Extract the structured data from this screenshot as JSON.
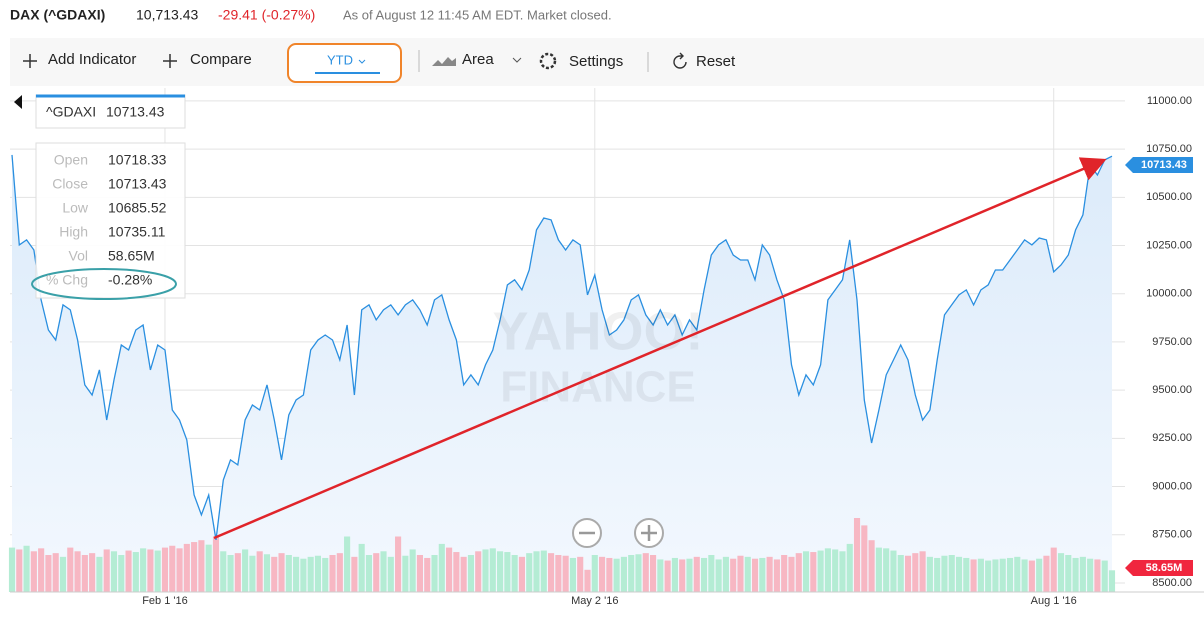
{
  "header": {
    "name": "DAX (^GDAXI)",
    "price": "10,713.43",
    "change": "-29.41 (-0.27%)",
    "status": "As of August 12 11:45 AM EDT. Market closed."
  },
  "toolbar": {
    "add_indicator": "Add Indicator",
    "compare": "Compare",
    "range": "YTD",
    "chart_type": "Area",
    "settings": "Settings",
    "reset": "Reset"
  },
  "tooltip": {
    "symbol": "^GDAXI",
    "rows": [
      {
        "label": "Open",
        "value": "10718.33"
      },
      {
        "label": "Close",
        "value": "10713.43"
      },
      {
        "label": "Low",
        "value": "10685.52"
      },
      {
        "label": "High",
        "value": "10735.11"
      },
      {
        "label": "Vol",
        "value": "58.65M"
      },
      {
        "label": "% Chg",
        "value": "-0.28%"
      }
    ]
  },
  "chart_data": {
    "type": "line",
    "watermark": [
      "YAHOO!",
      "FINANCE"
    ],
    "categories": [
      null,
      null,
      null,
      null,
      null,
      null,
      null,
      null,
      null,
      null,
      null,
      null,
      null,
      null,
      null,
      null,
      null,
      null,
      null,
      null,
      null,
      "Feb 1 '16",
      null,
      null,
      null,
      null,
      null,
      null,
      null,
      null,
      null,
      null,
      null,
      null,
      null,
      null,
      null,
      null,
      null,
      null,
      null,
      null,
      null,
      null,
      null,
      null,
      null,
      null,
      null,
      null,
      null,
      null,
      null,
      null,
      null,
      null,
      null,
      null,
      null,
      null,
      null,
      null,
      null,
      null,
      null,
      null,
      null,
      null,
      null,
      null,
      null,
      null,
      null,
      null,
      null,
      null,
      null,
      null,
      null,
      null,
      "May 2 '16",
      null,
      null,
      null,
      null,
      null,
      null,
      null,
      null,
      null,
      null,
      null,
      null,
      null,
      null,
      null,
      null,
      null,
      null,
      null,
      null,
      null,
      null,
      null,
      null,
      null,
      null,
      null,
      null,
      null,
      null,
      null,
      null,
      null,
      null,
      null,
      null,
      null,
      null,
      null,
      null,
      null,
      null,
      null,
      null,
      null,
      null,
      null,
      null,
      null,
      null,
      null,
      null,
      null,
      null,
      null,
      null,
      null,
      null,
      null,
      null,
      null,
      null,
      "Aug 1 '16",
      null,
      null,
      null,
      null,
      null,
      null,
      null,
      null
    ],
    "series": [
      {
        "name": "^GDAXI",
        "color": "#2a8fe0",
        "values": [
          10720,
          10253,
          10279,
          10227,
          9968,
          9812,
          9760,
          9942,
          9916,
          9760,
          9527,
          9475,
          9605,
          9345,
          9553,
          9734,
          9708,
          9812,
          9838,
          9605,
          9734,
          9708,
          9397,
          9345,
          9242,
          8956,
          8853,
          8956,
          8723,
          9034,
          9138,
          9112,
          9345,
          9423,
          9397,
          9527,
          9345,
          9138,
          9371,
          9449,
          9475,
          9708,
          9760,
          9786,
          9760,
          9657,
          9838,
          9475,
          9916,
          9942,
          9864,
          9916,
          9942,
          9890,
          9942,
          9968,
          9916,
          9838,
          9968,
          9994,
          9864,
          9760,
          9527,
          9579,
          9527,
          9631,
          9708,
          9864,
          10046,
          10072,
          10020,
          10123,
          10331,
          10393,
          10383,
          10279,
          10227,
          10279,
          10253,
          9994,
          10097,
          9916,
          9786,
          9812,
          9864,
          9968,
          9994,
          9890,
          9838,
          9916,
          9838,
          9890,
          9786,
          9864,
          9812,
          10020,
          10201,
          10253,
          10279,
          10201,
          10175,
          10175,
          10072,
          10253,
          10201,
          10072,
          9968,
          9631,
          9475,
          9579,
          9527,
          9631,
          9968,
          10020,
          10072,
          10279,
          9968,
          9449,
          9226,
          9397,
          9579,
          9657,
          9734,
          9657,
          9475,
          9345,
          9397,
          9657,
          9890,
          9942,
          9994,
          10020,
          9942,
          10020,
          10046,
          10123,
          10123,
          10175,
          10227,
          10279,
          10253,
          10289,
          10279,
          10113,
          10149,
          10201,
          10331,
          10409,
          10668,
          10616,
          10694,
          10713.43
        ]
      },
      {
        "name": "Volume",
        "up_color": "#b4ecd4",
        "down_color": "#f7b7c3",
        "values": [
          120,
          115,
          125,
          110,
          118,
          100,
          105,
          95,
          120,
          110,
          100,
          105,
          95,
          115,
          110,
          100,
          112,
          108,
          118,
          115,
          112,
          120,
          125,
          118,
          130,
          135,
          140,
          128,
          150,
          110,
          100,
          105,
          115,
          98,
          110,
          102,
          95,
          105,
          100,
          95,
          90,
          95,
          98,
          92,
          100,
          105,
          150,
          95,
          130,
          100,
          105,
          110,
          95,
          150,
          98,
          115,
          100,
          92,
          100,
          130,
          120,
          108,
          95,
          100,
          110,
          115,
          118,
          110,
          108,
          100,
          95,
          105,
          110,
          112,
          105,
          100,
          98,
          92,
          95,
          60,
          100,
          95,
          92,
          90,
          95,
          100,
          102,
          105,
          100,
          88,
          85,
          92,
          88,
          90,
          95,
          92,
          100,
          88,
          95,
          90,
          98,
          95,
          90,
          92,
          95,
          88,
          100,
          95,
          105,
          110,
          108,
          112,
          118,
          115,
          110,
          130,
          200,
          180,
          140,
          120,
          118,
          112,
          100,
          98,
          105,
          110,
          95,
          92,
          98,
          100,
          95,
          92,
          88,
          90,
          85,
          88,
          90,
          92,
          95,
          88,
          85,
          90,
          98,
          120,
          105,
          100,
          92,
          95,
          90,
          88,
          85,
          58.65
        ]
      }
    ],
    "ylim": [
      8453,
      11067
    ],
    "yticks": [
      {
        "value": 8500,
        "label": "8500.00"
      },
      {
        "value": 8750,
        "label": "8750.00"
      },
      {
        "value": 9000,
        "label": "9000.00"
      },
      {
        "value": 9250,
        "label": "9250.00"
      },
      {
        "value": 9500,
        "label": "9500.00"
      },
      {
        "value": 9750,
        "label": "9750.00"
      },
      {
        "value": 10000,
        "label": "10000.00"
      },
      {
        "value": 10250,
        "label": "10250.00"
      },
      {
        "value": 10500,
        "label": "10500.00"
      },
      {
        "value": 10750,
        "label": "10750.00"
      },
      {
        "value": 11000,
        "label": "11000.00"
      }
    ],
    "grid": true
  }
}
